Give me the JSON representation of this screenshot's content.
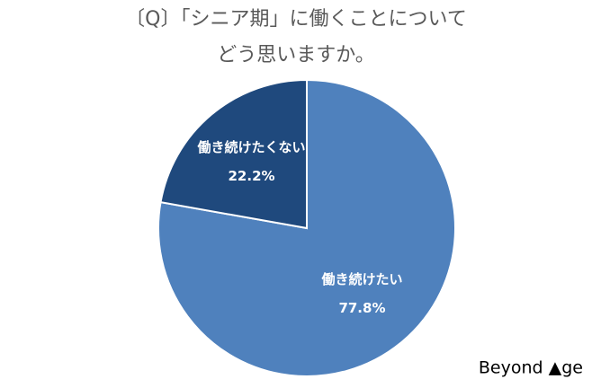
{
  "chart_data": {
    "type": "pie",
    "title": [
      "〔Q〕「シニア期」に働くことについて",
      "どう思いますか。"
    ],
    "categories": [
      "働き続けたい",
      "働き続けたくない"
    ],
    "values": [
      77.8,
      22.2
    ],
    "value_labels": [
      "77.8%",
      "22.2%"
    ],
    "colors": [
      "#4f81bd",
      "#1f497d"
    ]
  },
  "brand": "Beyond ▲ge"
}
